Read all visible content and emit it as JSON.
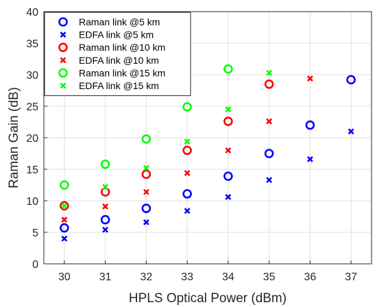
{
  "chart_data": {
    "type": "scatter",
    "title": "",
    "xlabel": "HPLS Optical Power (dBm)",
    "ylabel": "Raman Gain (dB)",
    "xlim": [
      29.5,
      37.5
    ],
    "ylim": [
      0,
      40
    ],
    "xticks": [
      30,
      31,
      32,
      33,
      34,
      35,
      36,
      37
    ],
    "yticks": [
      0,
      5,
      10,
      15,
      20,
      25,
      30,
      35,
      40
    ],
    "grid": true,
    "legend_position": "top-left",
    "series": [
      {
        "name": "Raman link @5 km",
        "marker": "circle",
        "color": "#0000ff",
        "x": [
          30,
          31,
          32,
          33,
          34,
          35,
          36,
          37
        ],
        "y": [
          5.7,
          7.0,
          8.8,
          11.1,
          13.9,
          17.5,
          22.0,
          29.2
        ]
      },
      {
        "name": "EDFA link @5 km",
        "marker": "x",
        "color": "#0000ff",
        "x": [
          30,
          31,
          32,
          33,
          34,
          35,
          36,
          37
        ],
        "y": [
          4.0,
          5.4,
          6.6,
          8.4,
          10.6,
          13.3,
          16.6,
          21.0
        ]
      },
      {
        "name": "Raman link @10 km",
        "marker": "circle",
        "color": "#ff0000",
        "x": [
          30,
          31,
          32,
          33,
          34,
          35
        ],
        "y": [
          9.2,
          11.4,
          14.2,
          18.0,
          22.6,
          28.5
        ]
      },
      {
        "name": "EDFA link @10 km",
        "marker": "x",
        "color": "#ff0000",
        "x": [
          30,
          31,
          32,
          33,
          34,
          35,
          36
        ],
        "y": [
          7.0,
          9.1,
          11.4,
          14.4,
          18.0,
          22.6,
          29.4
        ]
      },
      {
        "name": "Raman link @15 km",
        "marker": "circle",
        "color": "#00ff00",
        "x": [
          30,
          31,
          32,
          33,
          34
        ],
        "y": [
          12.5,
          15.8,
          19.8,
          24.9,
          30.9
        ]
      },
      {
        "name": "EDFA link @15 km",
        "marker": "x",
        "color": "#00ff00",
        "x": [
          30,
          31,
          32,
          33,
          34,
          35
        ],
        "y": [
          9.2,
          12.2,
          15.2,
          19.4,
          24.5,
          30.3
        ]
      }
    ]
  }
}
